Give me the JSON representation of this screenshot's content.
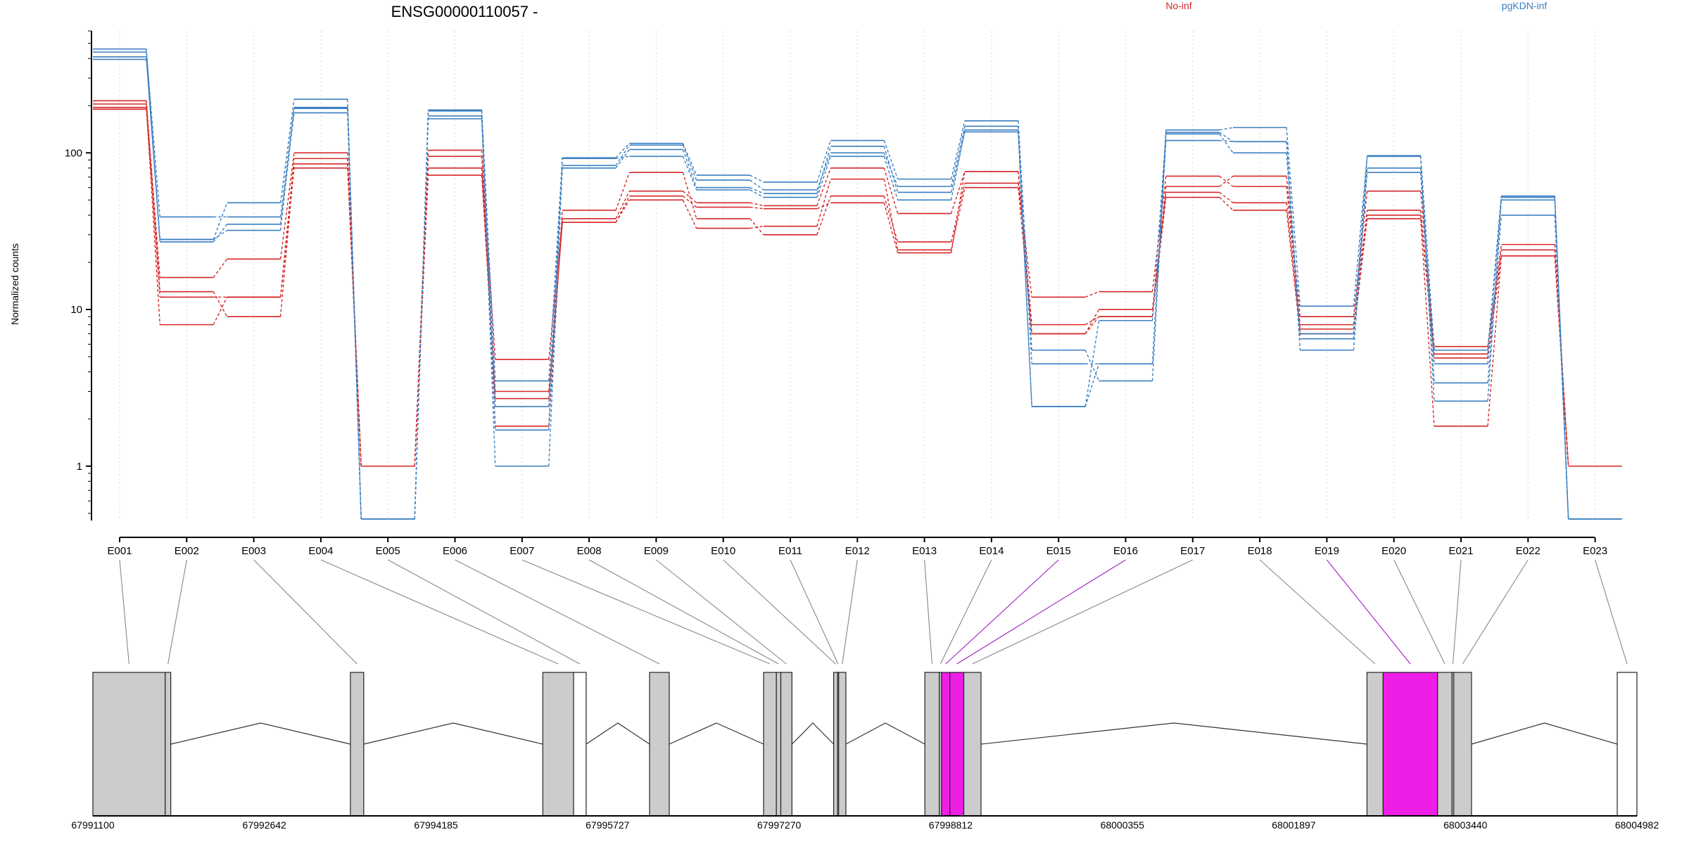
{
  "chart_data": {
    "type": "line",
    "title": "ENSG00000110057 -",
    "ylabel": "Normalized counts",
    "y_scale": "log10",
    "ylim": [
      0.45,
      600
    ],
    "y_ticks": [
      {
        "value": 1,
        "label": "1"
      },
      {
        "value": 10,
        "label": "10"
      },
      {
        "value": 100,
        "label": "100"
      }
    ],
    "grid": "vertical dotted lines at each exon",
    "legend": [
      {
        "name": "No-inf",
        "color": "#d62728",
        "position": "top-center-right"
      },
      {
        "name": "pgKDN-inf",
        "color": "#3a7fc1",
        "position": "top-right"
      }
    ],
    "colors": {
      "No-inf": "#d62728",
      "pgKDN-inf": "#3a7fc1",
      "highlight": "#ee1ee6",
      "exon_fill": "#cccccc"
    },
    "exons": [
      "E001",
      "E002",
      "E003",
      "E004",
      "E005",
      "E006",
      "E007",
      "E008",
      "E009",
      "E010",
      "E011",
      "E012",
      "E013",
      "E014",
      "E015",
      "E016",
      "E017",
      "E018",
      "E019",
      "E020",
      "E021",
      "E022",
      "E023"
    ],
    "series": [
      {
        "group": "No-inf",
        "values": [
          215,
          13,
          9,
          85,
          1.0,
          95,
          4.8,
          38,
          57,
          48,
          46,
          80,
          41,
          76,
          8,
          9,
          61,
          71,
          9,
          57,
          5.8,
          26,
          1.0
        ]
      },
      {
        "group": "No-inf",
        "values": [
          205,
          16,
          21,
          100,
          1.0,
          104,
          1.8,
          43,
          75,
          38,
          30,
          53,
          27,
          64,
          12,
          13,
          71,
          61,
          8,
          43,
          5.2,
          24,
          1.0
        ]
      },
      {
        "group": "No-inf",
        "values": [
          195,
          8,
          12,
          92,
          1.0,
          80,
          3.0,
          36,
          50,
          33,
          34,
          68,
          24,
          60,
          7,
          10,
          56,
          48,
          7.5,
          40,
          4.9,
          22,
          1.0
        ]
      },
      {
        "group": "No-inf",
        "values": [
          190,
          12,
          12,
          80,
          1.0,
          72,
          2.7,
          36,
          53,
          45,
          44,
          48,
          23,
          76,
          7,
          9,
          52,
          43,
          7,
          38,
          1.8,
          22,
          1.0
        ]
      },
      {
        "group": "pgKDN-inf",
        "values": [
          460,
          28,
          48,
          220,
          0.46,
          188,
          3.5,
          93,
          115,
          72,
          65,
          120,
          68,
          160,
          4.5,
          4.5,
          140,
          145,
          10.5,
          96,
          5.5,
          53,
          0.46
        ]
      },
      {
        "group": "pgKDN-inf",
        "values": [
          440,
          39,
          39,
          192,
          0.46,
          185,
          1.0,
          83,
          112,
          67,
          58,
          100,
          61,
          148,
          5.5,
          3.5,
          135,
          118,
          6.5,
          80,
          4.5,
          52,
          0.46
        ]
      },
      {
        "group": "pgKDN-inf",
        "values": [
          410,
          27,
          35,
          180,
          0.46,
          165,
          2.4,
          80,
          105,
          60,
          55,
          110,
          56,
          136,
          2.4,
          4.5,
          120,
          118,
          5.5,
          75,
          3.4,
          40,
          0.46
        ]
      },
      {
        "group": "pgKDN-inf",
        "values": [
          395,
          28,
          32,
          195,
          0.46,
          172,
          1.7,
          92,
          95,
          58,
          52,
          95,
          50,
          140,
          2.4,
          8.5,
          132,
          100,
          7,
          95,
          2.6,
          50,
          0.46
        ]
      }
    ],
    "highlighted_exons": [
      "E015",
      "E016",
      "E019"
    ],
    "genomic_axis": {
      "start": 67991100,
      "end": 68004982,
      "tick_labels": [
        "67991100",
        "67992642",
        "67994185",
        "67995727",
        "67997270",
        "67998812",
        "68000355",
        "68001897",
        "68003440",
        "68004982"
      ]
    },
    "exon_coords": [
      {
        "id": "E001",
        "start": 67991100,
        "end": 67991750
      },
      {
        "id": "E002",
        "start": 67991750,
        "end": 67991800
      },
      {
        "id": "E003",
        "start": 67993415,
        "end": 67993535
      },
      {
        "id": "E004",
        "start": 67995145,
        "end": 67995422
      },
      {
        "id": "E005",
        "start": 67995422,
        "end": 67995535
      },
      {
        "id": "E006",
        "start": 67996105,
        "end": 67996282
      },
      {
        "id": "E007",
        "start": 67997130,
        "end": 67997245
      },
      {
        "id": "E008",
        "start": 67997245,
        "end": 67997285
      },
      {
        "id": "E009",
        "start": 67997285,
        "end": 67997385
      },
      {
        "id": "E010",
        "start": 67997760,
        "end": 67997795
      },
      {
        "id": "E011",
        "start": 67997795,
        "end": 67997805
      },
      {
        "id": "E012",
        "start": 67997805,
        "end": 67997870
      },
      {
        "id": "E013",
        "start": 67998580,
        "end": 67998710
      },
      {
        "id": "E014",
        "start": 67998710,
        "end": 67998730
      },
      {
        "id": "E015",
        "start": 67998730,
        "end": 67998805
      },
      {
        "id": "E016",
        "start": 67998805,
        "end": 67998930
      },
      {
        "id": "E017",
        "start": 67998930,
        "end": 67999085
      },
      {
        "id": "E018",
        "start": 68002555,
        "end": 68002700
      },
      {
        "id": "E019",
        "start": 68002700,
        "end": 68003190
      },
      {
        "id": "E020",
        "start": 68003190,
        "end": 68003320
      },
      {
        "id": "E021",
        "start": 68003320,
        "end": 68003335
      },
      {
        "id": "E022",
        "start": 68003335,
        "end": 68003495
      },
      {
        "id": "E023",
        "start": 68004805,
        "end": 68004982
      }
    ]
  }
}
